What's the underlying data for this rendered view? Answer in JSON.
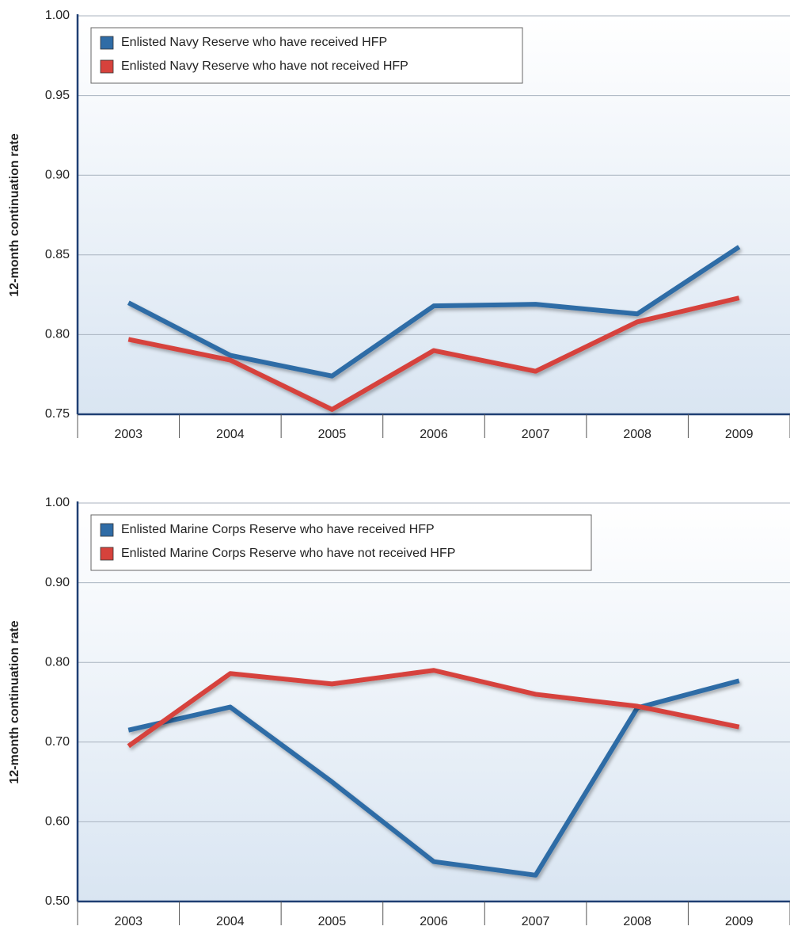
{
  "chart_data": [
    {
      "type": "line",
      "y_label": "12-month continuation rate",
      "categories": [
        "2003",
        "2004",
        "2005",
        "2006",
        "2007",
        "2008",
        "2009"
      ],
      "series": [
        {
          "name": "Enlisted Navy Reserve who have received HFP",
          "color": "#2f6ca6",
          "values": [
            0.82,
            0.787,
            0.774,
            0.818,
            0.819,
            0.813,
            0.855
          ]
        },
        {
          "name": "Enlisted Navy Reserve who have not received HFP",
          "color": "#d6423c",
          "values": [
            0.797,
            0.784,
            0.753,
            0.79,
            0.777,
            0.808,
            0.823
          ]
        }
      ],
      "ylim": [
        0.75,
        1.0
      ],
      "yticks": [
        {
          "value": 0.75,
          "label": "0.75"
        },
        {
          "value": 0.8,
          "label": "0.80"
        },
        {
          "value": 0.85,
          "label": "0.85"
        },
        {
          "value": 0.9,
          "label": "0.90"
        },
        {
          "value": 0.95,
          "label": "0.95"
        },
        {
          "value": 1.0,
          "label": "1.00"
        }
      ],
      "grid": true,
      "legend": "upper left"
    },
    {
      "type": "line",
      "y_label": "12-month continuation rate",
      "categories": [
        "2003",
        "2004",
        "2005",
        "2006",
        "2007",
        "2008",
        "2009"
      ],
      "series": [
        {
          "name": "Enlisted Marine Corps Reserve who have received HFP",
          "color": "#2f6ca6",
          "values": [
            0.715,
            0.744,
            0.65,
            0.55,
            0.533,
            0.743,
            0.777
          ]
        },
        {
          "name": "Enlisted Marine Corps Reserve who have not received HFP",
          "color": "#d6423c",
          "values": [
            0.695,
            0.786,
            0.773,
            0.79,
            0.76,
            0.745,
            0.719
          ]
        }
      ],
      "ylim": [
        0.5,
        1.0
      ],
      "yticks": [
        {
          "value": 0.5,
          "label": "0.50"
        },
        {
          "value": 0.6,
          "label": "0.60"
        },
        {
          "value": 0.7,
          "label": "0.70"
        },
        {
          "value": 0.8,
          "label": "0.80"
        },
        {
          "value": 0.9,
          "label": "0.90"
        },
        {
          "value": 1.0,
          "label": "1.00"
        }
      ],
      "grid": true,
      "legend": "upper left"
    }
  ]
}
